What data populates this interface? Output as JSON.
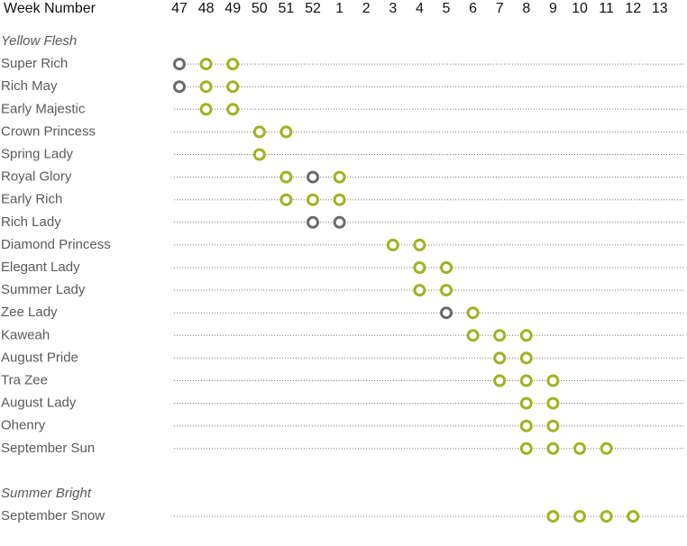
{
  "header": {
    "label": "Week Number",
    "weeks": [
      47,
      48,
      49,
      50,
      51,
      52,
      1,
      2,
      3,
      4,
      5,
      6,
      7,
      8,
      9,
      10,
      11,
      12,
      13
    ]
  },
  "groups": [
    {
      "title": "Yellow Flesh",
      "rows": [
        {
          "name": "Super Rich",
          "marks": [
            {
              "week": 47,
              "color": "#6b6b6b"
            },
            {
              "week": 48,
              "color": "#9ab523"
            },
            {
              "week": 49,
              "color": "#9ab523"
            }
          ]
        },
        {
          "name": "Rich May",
          "marks": [
            {
              "week": 47,
              "color": "#6b6b6b"
            },
            {
              "week": 48,
              "color": "#9ab523"
            },
            {
              "week": 49,
              "color": "#9ab523"
            }
          ]
        },
        {
          "name": "Early Majestic",
          "marks": [
            {
              "week": 48,
              "color": "#9ab523"
            },
            {
              "week": 49,
              "color": "#9ab523"
            }
          ]
        },
        {
          "name": "Crown Princess",
          "marks": [
            {
              "week": 50,
              "color": "#9ab523"
            },
            {
              "week": 51,
              "color": "#9ab523"
            }
          ]
        },
        {
          "name": "Spring Lady",
          "marks": [
            {
              "week": 50,
              "color": "#9ab523"
            }
          ]
        },
        {
          "name": "Royal Glory",
          "marks": [
            {
              "week": 51,
              "color": "#9ab523"
            },
            {
              "week": 52,
              "color": "#6b6b6b"
            },
            {
              "week": 1,
              "color": "#9ab523"
            }
          ]
        },
        {
          "name": "Early Rich",
          "marks": [
            {
              "week": 51,
              "color": "#9ab523"
            },
            {
              "week": 52,
              "color": "#9ab523"
            },
            {
              "week": 1,
              "color": "#9ab523"
            }
          ]
        },
        {
          "name": "Rich Lady",
          "marks": [
            {
              "week": 52,
              "color": "#6b6b6b"
            },
            {
              "week": 1,
              "color": "#6b6b6b"
            }
          ]
        },
        {
          "name": "Diamond Princess",
          "marks": [
            {
              "week": 3,
              "color": "#9ab523"
            },
            {
              "week": 4,
              "color": "#9ab523"
            }
          ]
        },
        {
          "name": "Elegant Lady",
          "marks": [
            {
              "week": 4,
              "color": "#9ab523"
            },
            {
              "week": 5,
              "color": "#9ab523"
            }
          ]
        },
        {
          "name": "Summer Lady",
          "marks": [
            {
              "week": 4,
              "color": "#9ab523"
            },
            {
              "week": 5,
              "color": "#9ab523"
            }
          ]
        },
        {
          "name": "Zee Lady",
          "marks": [
            {
              "week": 5,
              "color": "#6b6b6b"
            },
            {
              "week": 6,
              "color": "#9ab523"
            }
          ]
        },
        {
          "name": "Kaweah",
          "marks": [
            {
              "week": 6,
              "color": "#9ab523"
            },
            {
              "week": 7,
              "color": "#9ab523"
            },
            {
              "week": 8,
              "color": "#9ab523"
            }
          ]
        },
        {
          "name": "August Pride",
          "marks": [
            {
              "week": 7,
              "color": "#9ab523"
            },
            {
              "week": 8,
              "color": "#9ab523"
            }
          ]
        },
        {
          "name": "Tra Zee",
          "marks": [
            {
              "week": 7,
              "color": "#9ab523"
            },
            {
              "week": 8,
              "color": "#9ab523"
            },
            {
              "week": 9,
              "color": "#9ab523"
            }
          ]
        },
        {
          "name": "August Lady",
          "marks": [
            {
              "week": 8,
              "color": "#9ab523"
            },
            {
              "week": 9,
              "color": "#9ab523"
            }
          ]
        },
        {
          "name": "Ohenry",
          "marks": [
            {
              "week": 8,
              "color": "#9ab523"
            },
            {
              "week": 9,
              "color": "#9ab523"
            }
          ]
        },
        {
          "name": "September Sun",
          "marks": [
            {
              "week": 8,
              "color": "#9ab523"
            },
            {
              "week": 9,
              "color": "#9ab523"
            },
            {
              "week": 10,
              "color": "#9ab523"
            },
            {
              "week": 11,
              "color": "#9ab523"
            }
          ]
        }
      ]
    },
    {
      "title": "Summer Bright",
      "rows": [
        {
          "name": "September Snow",
          "marks": [
            {
              "week": 9,
              "color": "#9ab523"
            },
            {
              "week": 10,
              "color": "#9ab523"
            },
            {
              "week": 11,
              "color": "#9ab523"
            },
            {
              "week": 12,
              "color": "#9ab523"
            }
          ]
        }
      ]
    }
  ]
}
